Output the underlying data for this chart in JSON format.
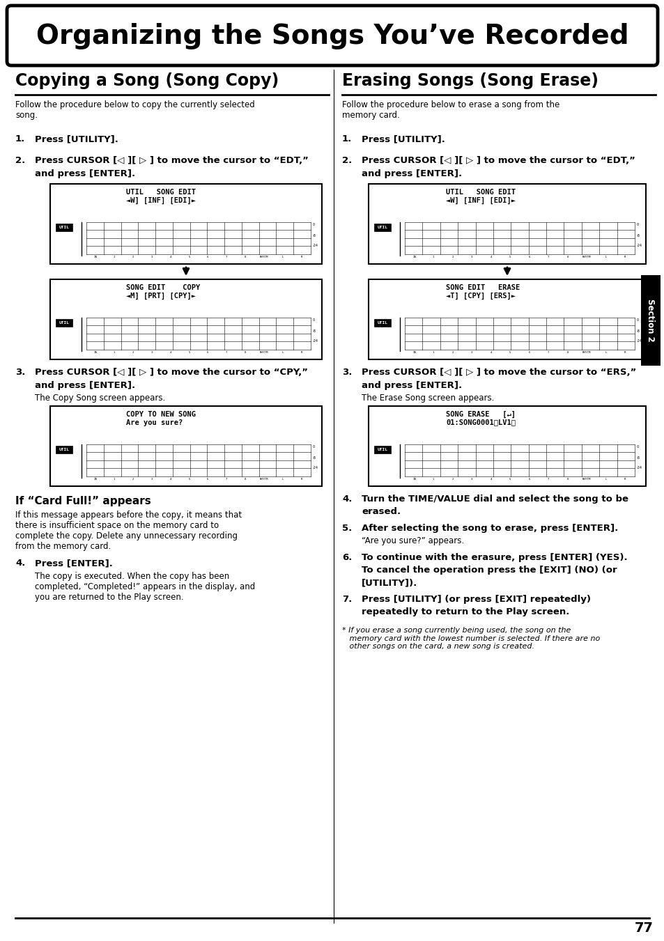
{
  "title": "Organizing the Songs You’ve Recorded",
  "left_section_title": "Copying a Song (Song Copy)",
  "right_section_title": "Erasing Songs (Song Erase)",
  "left_intro": "Follow the procedure below to copy the currently selected\nsong.",
  "right_intro": "Follow the procedure below to erase a song from the\nmemory card.",
  "card_full_title": "If “Card Full!” appears",
  "card_full_text": "If this message appears before the copy, it means that\nthere is insufficient space on the memory card to\ncomplete the copy. Delete any unnecessary recording\nfrom the memory card.",
  "footnote": "* If you erase a song currently being used, the song on the\n   memory card with the lowest number is selected. If there are no\n   other songs on the card, a new song is created.",
  "page_number": "77",
  "section_label": "Section 2",
  "bg_color": "#ffffff"
}
